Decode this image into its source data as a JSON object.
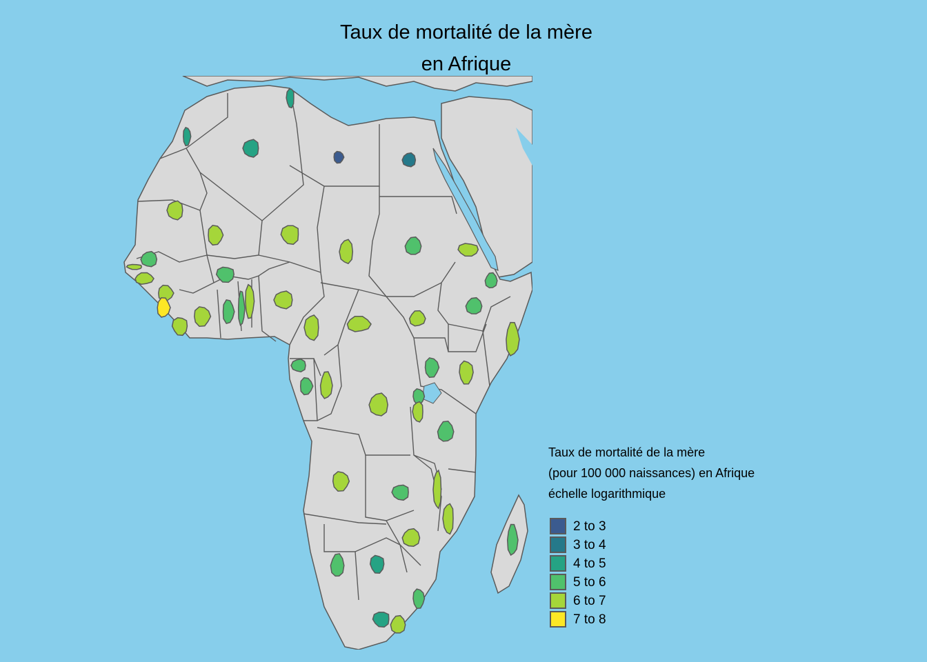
{
  "title": {
    "line1": "Taux de mortalité de la mère",
    "line2": "en Afrique"
  },
  "legend": {
    "title_lines": [
      "Taux de mortalité de la mère",
      "(pour 100 000 naissances) en Afrique",
      "échelle logarithmique"
    ],
    "items": [
      {
        "label": "2 to 3",
        "color": "#3b5b8f"
      },
      {
        "label": "3 to 4",
        "color": "#25798a"
      },
      {
        "label": "4 to 5",
        "color": "#25a384"
      },
      {
        "label": "5 to 6",
        "color": "#50c16c"
      },
      {
        "label": "6 to 7",
        "color": "#a5d63a"
      },
      {
        "label": "7 to 8",
        "color": "#fde725"
      }
    ]
  },
  "colors": {
    "sea": "#87ceeb",
    "land": "#d9d9d9",
    "border": "#5a5a5a"
  },
  "map_data": {
    "classes": [
      {
        "country": "Libya",
        "class": "2 to 3"
      },
      {
        "country": "Egypt",
        "class": "3 to 4"
      },
      {
        "country": "Tunisia",
        "class": "4 to 5"
      },
      {
        "country": "Morocco",
        "class": "4 to 5"
      },
      {
        "country": "Algeria",
        "class": "4 to 5"
      },
      {
        "country": "Mauritania",
        "class": "6 to 7"
      },
      {
        "country": "Mali",
        "class": "6 to 7"
      },
      {
        "country": "Niger",
        "class": "6 to 7"
      },
      {
        "country": "Chad",
        "class": "6 to 7"
      },
      {
        "country": "Sudan",
        "class": "5 to 6"
      },
      {
        "country": "Eritrea",
        "class": "6 to 7"
      },
      {
        "country": "Djibouti",
        "class": "5 to 6"
      },
      {
        "country": "Ethiopia",
        "class": "5 to 6"
      },
      {
        "country": "Somalia",
        "class": "6 to 7"
      },
      {
        "country": "South Sudan",
        "class": "6 to 7"
      },
      {
        "country": "Central African Republic",
        "class": "6 to 7"
      },
      {
        "country": "Senegal",
        "class": "5 to 6"
      },
      {
        "country": "Gambia",
        "class": "6 to 7"
      },
      {
        "country": "Guinea-Bissau",
        "class": "6 to 7"
      },
      {
        "country": "Guinea",
        "class": "6 to 7"
      },
      {
        "country": "Sierra Leone",
        "class": "7 to 8"
      },
      {
        "country": "Liberia",
        "class": "6 to 7"
      },
      {
        "country": "Côte d'Ivoire",
        "class": "6 to 7"
      },
      {
        "country": "Burkina Faso",
        "class": "5 to 6"
      },
      {
        "country": "Ghana",
        "class": "5 to 6"
      },
      {
        "country": "Togo",
        "class": "5 to 6"
      },
      {
        "country": "Benin",
        "class": "6 to 7"
      },
      {
        "country": "Nigeria",
        "class": "6 to 7"
      },
      {
        "country": "Cameroon",
        "class": "6 to 7"
      },
      {
        "country": "Equatorial Guinea",
        "class": "5 to 6"
      },
      {
        "country": "Gabon",
        "class": "5 to 6"
      },
      {
        "country": "Republic of the Congo",
        "class": "6 to 7"
      },
      {
        "country": "DR Congo",
        "class": "6 to 7"
      },
      {
        "country": "Uganda",
        "class": "5 to 6"
      },
      {
        "country": "Kenya",
        "class": "6 to 7"
      },
      {
        "country": "Rwanda",
        "class": "5 to 6"
      },
      {
        "country": "Burundi",
        "class": "6 to 7"
      },
      {
        "country": "Tanzania",
        "class": "5 to 6"
      },
      {
        "country": "Angola",
        "class": "6 to 7"
      },
      {
        "country": "Zambia",
        "class": "5 to 6"
      },
      {
        "country": "Malawi",
        "class": "6 to 7"
      },
      {
        "country": "Mozambique",
        "class": "6 to 7"
      },
      {
        "country": "Zimbabwe",
        "class": "6 to 7"
      },
      {
        "country": "Namibia",
        "class": "5 to 6"
      },
      {
        "country": "Botswana",
        "class": "4 to 5"
      },
      {
        "country": "Eswatini",
        "class": "5 to 6"
      },
      {
        "country": "South Africa",
        "class": "4 to 5"
      },
      {
        "country": "Lesotho",
        "class": "6 to 7"
      },
      {
        "country": "Madagascar",
        "class": "5 to 6"
      }
    ]
  }
}
